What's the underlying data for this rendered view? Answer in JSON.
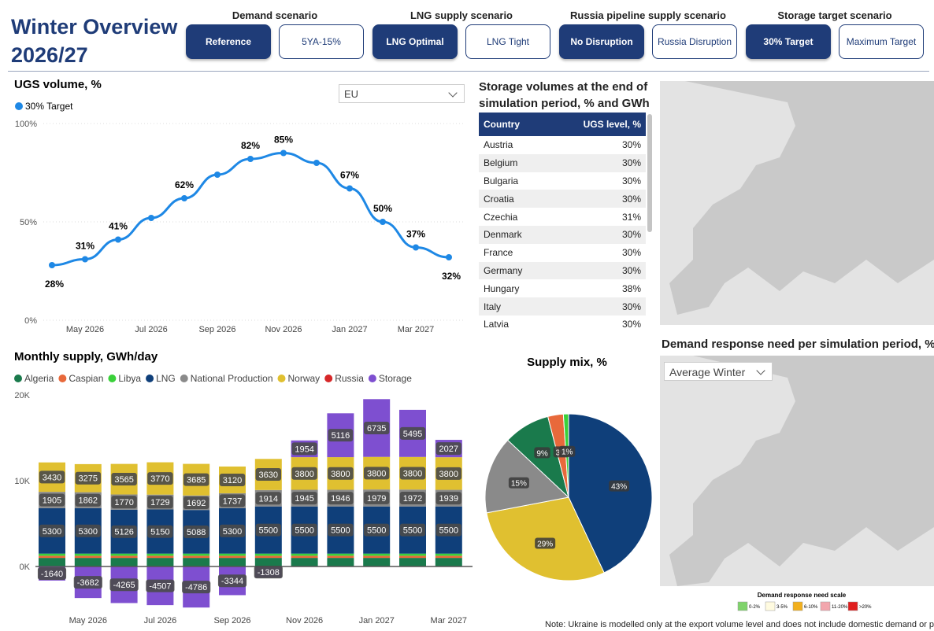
{
  "header": {
    "title_lines": [
      "Winter Overview",
      "2026/27"
    ]
  },
  "scenarios": [
    {
      "label": "Demand scenario",
      "options": [
        "Reference",
        "5YA-15%"
      ],
      "selected": 0
    },
    {
      "label": "LNG supply scenario",
      "options": [
        "LNG Optimal",
        "LNG Tight"
      ],
      "selected": 0
    },
    {
      "label": "Russia pipeline supply scenario",
      "options": [
        "No Disruption",
        "Russia Disruption"
      ],
      "selected": 0
    },
    {
      "label": "Storage target scenario",
      "options": [
        "30% Target",
        "Maximum Target"
      ],
      "selected": 0
    }
  ],
  "chart_data": [
    {
      "type": "line",
      "title": "UGS volume, %",
      "dropdown": "EU",
      "categories": [
        null,
        "May 2026",
        null,
        "Jul 2026",
        null,
        "Sep 2026",
        null,
        "Nov 2026",
        null,
        "Jan 2027",
        null,
        "Mar 2027",
        null
      ],
      "series": [
        {
          "name": "30% Target",
          "color": "#1e88e5",
          "values": [
            28,
            31,
            41,
            52,
            62,
            74,
            82,
            85,
            80,
            67,
            50,
            37,
            32
          ],
          "value_labels": [
            "28%",
            "31%",
            "41%",
            null,
            "62%",
            null,
            "82%",
            "85%",
            null,
            "67%",
            "50%",
            "37%",
            "32%"
          ]
        }
      ],
      "ylim": [
        0,
        100
      ],
      "yticks": [
        {
          "value": 0,
          "label": "0%"
        },
        {
          "value": 50,
          "label": "50%"
        },
        {
          "value": 100,
          "label": "100%"
        }
      ],
      "grid": true
    },
    {
      "type": "bar",
      "stacked": true,
      "title": "Monthly supply, GWh/day",
      "categories": [
        null,
        "May 2026",
        null,
        "Jul 2026",
        null,
        "Sep 2026",
        null,
        "Nov 2026",
        null,
        "Jan 2027",
        null,
        "Mar 2027"
      ],
      "series": [
        {
          "name": "Algeria",
          "color": "#1a7a4c",
          "values": [
            1000,
            1000,
            1000,
            1000,
            1000,
            1000,
            1000,
            1000,
            1000,
            1000,
            1000,
            1000
          ],
          "show_labels": false
        },
        {
          "name": "Caspian",
          "color": "#e8693b",
          "values": [
            250,
            250,
            250,
            250,
            250,
            250,
            250,
            250,
            250,
            250,
            250,
            250
          ],
          "show_labels": false
        },
        {
          "name": "Libya",
          "color": "#3ad13a",
          "values": [
            250,
            250,
            250,
            250,
            250,
            250,
            250,
            250,
            250,
            250,
            250,
            250
          ],
          "show_labels": false
        },
        {
          "name": "LNG",
          "color": "#0f3f7a",
          "values": [
            5300,
            5300,
            5126,
            5150,
            5088,
            5300,
            5500,
            5500,
            5500,
            5500,
            5500,
            5500
          ],
          "show_labels": true
        },
        {
          "name": "National Production",
          "color": "#8a8a8a",
          "values": [
            1905,
            1862,
            1770,
            1729,
            1692,
            1737,
            1914,
            1945,
            1946,
            1979,
            1972,
            1939
          ],
          "show_labels": true
        },
        {
          "name": "Norway",
          "color": "#e0c030",
          "values": [
            3430,
            3275,
            3565,
            3770,
            3685,
            3120,
            3630,
            3800,
            3800,
            3800,
            3800,
            3800
          ],
          "show_labels": true
        },
        {
          "name": "Russia",
          "color": "#d62728",
          "values": [
            0,
            0,
            0,
            0,
            0,
            0,
            0,
            0,
            0,
            0,
            0,
            0
          ],
          "show_labels": false
        },
        {
          "name": "Storage",
          "color": "#7e4fd0",
          "values": [
            -1640,
            -3682,
            -4265,
            -4507,
            -4786,
            -3344,
            -1308,
            1954,
            5116,
            6735,
            5495,
            2027
          ],
          "show_labels": true
        }
      ],
      "ylim": [
        -5000,
        20000
      ],
      "yticks": [
        {
          "value": 0,
          "label": "0K"
        },
        {
          "value": 10000,
          "label": "10K"
        },
        {
          "value": 20000,
          "label": "20K"
        }
      ],
      "grid": false
    },
    {
      "type": "pie",
      "title": "Supply mix, %",
      "values": [
        43,
        29,
        15,
        9,
        3,
        1
      ],
      "value_labels": [
        "43%",
        "29%",
        "15%",
        "9%",
        "3%",
        "1%"
      ],
      "colors": [
        "#0f3f7a",
        "#e0c030",
        "#8a8a8a",
        "#1a7a4c",
        "#e8693b",
        "#3ad13a"
      ]
    }
  ],
  "table": {
    "title": "Storage volumes at the end of simulation period, % and GWh",
    "columns": [
      "Country",
      "UGS level, %"
    ],
    "rows": [
      [
        "Austria",
        "30%"
      ],
      [
        "Belgium",
        "30%"
      ],
      [
        "Bulgaria",
        "30%"
      ],
      [
        "Croatia",
        "30%"
      ],
      [
        "Czechia",
        "31%"
      ],
      [
        "Denmark",
        "30%"
      ],
      [
        "France",
        "30%"
      ],
      [
        "Germany",
        "30%"
      ],
      [
        "Hungary",
        "38%"
      ],
      [
        "Italy",
        "30%"
      ],
      [
        "Latvia",
        "30%"
      ]
    ]
  },
  "map": {
    "title": "Demand response need per simulation period, %",
    "dropdown": "Average Winter",
    "scale_title": "Demand response need scale",
    "scale": [
      {
        "label": "0-2%",
        "color": "#7fd36b"
      },
      {
        "label": "3-5%",
        "color": "#fffbe0"
      },
      {
        "label": "6-10%",
        "color": "#f2b01e"
      },
      {
        "label": "11-20%",
        "color": "#f2a6ad"
      },
      {
        "label": ">20%",
        "color": "#e01e1e"
      }
    ]
  },
  "note": "Note: Ukraine is modelled only at the export volume level and does not include domestic demand or productio"
}
